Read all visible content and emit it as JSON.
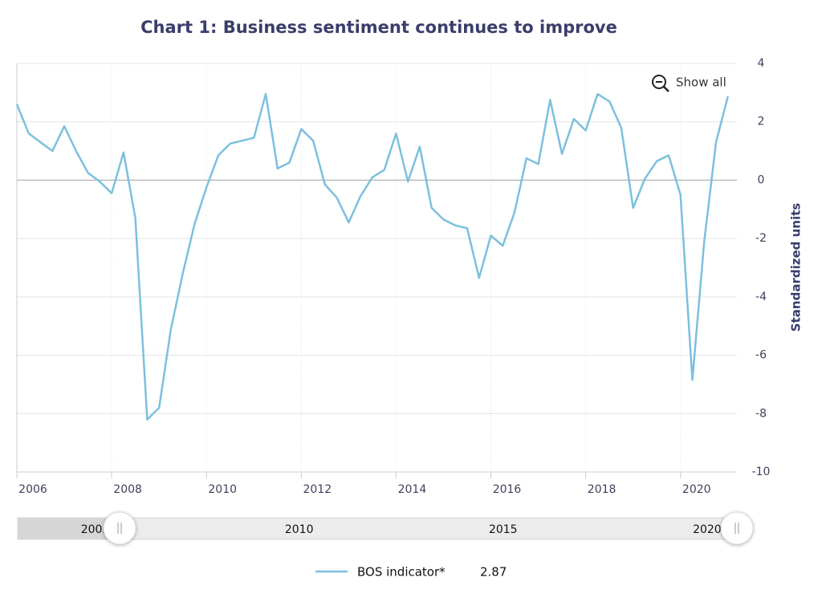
{
  "chart_data": {
    "type": "line",
    "title": "Chart 1: Business sentiment continues to improve",
    "y_axis_label": "Standardized units",
    "x": [
      2006,
      2006.25,
      2006.5,
      2006.75,
      2007,
      2007.25,
      2007.5,
      2007.75,
      2008,
      2008.25,
      2008.5,
      2008.75,
      2009,
      2009.25,
      2009.5,
      2009.75,
      2010,
      2010.25,
      2010.5,
      2010.75,
      2011,
      2011.25,
      2011.5,
      2011.75,
      2012,
      2012.25,
      2012.5,
      2012.75,
      2013,
      2013.25,
      2013.5,
      2013.75,
      2014,
      2014.25,
      2014.5,
      2014.75,
      2015,
      2015.25,
      2015.5,
      2015.75,
      2016,
      2016.25,
      2016.5,
      2016.75,
      2017,
      2017.25,
      2017.5,
      2017.75,
      2018,
      2018.25,
      2018.5,
      2018.75,
      2019,
      2019.25,
      2019.5,
      2019.75,
      2020,
      2020.25,
      2020.5,
      2020.75,
      2021
    ],
    "series": [
      {
        "name": "BOS indicator*",
        "color": "#7cc0de",
        "values": [
          2.6,
          1.6,
          1.3,
          1.0,
          1.85,
          1.0,
          0.25,
          -0.05,
          -0.45,
          0.95,
          -1.3,
          -8.2,
          -7.8,
          -5.1,
          -3.2,
          -1.5,
          -0.25,
          0.85,
          1.25,
          1.35,
          1.45,
          2.95,
          0.4,
          0.6,
          1.75,
          1.35,
          -0.15,
          -0.6,
          -1.45,
          -0.55,
          0.1,
          0.35,
          1.6,
          -0.05,
          1.15,
          -0.95,
          -1.35,
          -1.55,
          -1.65,
          -3.35,
          -1.9,
          -2.25,
          -1.1,
          0.75,
          0.55,
          2.75,
          0.9,
          2.1,
          1.7,
          2.95,
          2.7,
          1.8,
          -0.95,
          0.05,
          0.65,
          0.85,
          -0.5,
          -6.85,
          -2.1,
          1.3,
          2.87
        ]
      }
    ],
    "xlim": [
      2006,
      2021.19
    ],
    "xticks": [
      2006,
      2008,
      2010,
      2012,
      2014,
      2016,
      2018,
      2020
    ],
    "ylim": [
      -10,
      4
    ],
    "yticks": [
      -10,
      -8,
      -6,
      -4,
      -2,
      0,
      2,
      4
    ],
    "grid": true,
    "reset_button": "Show all",
    "navigator": {
      "xlim": [
        2003.1,
        2020.73
      ],
      "xticks": [
        2005,
        2010,
        2015,
        2020
      ],
      "range": [
        2005.6,
        2020.73
      ]
    }
  }
}
